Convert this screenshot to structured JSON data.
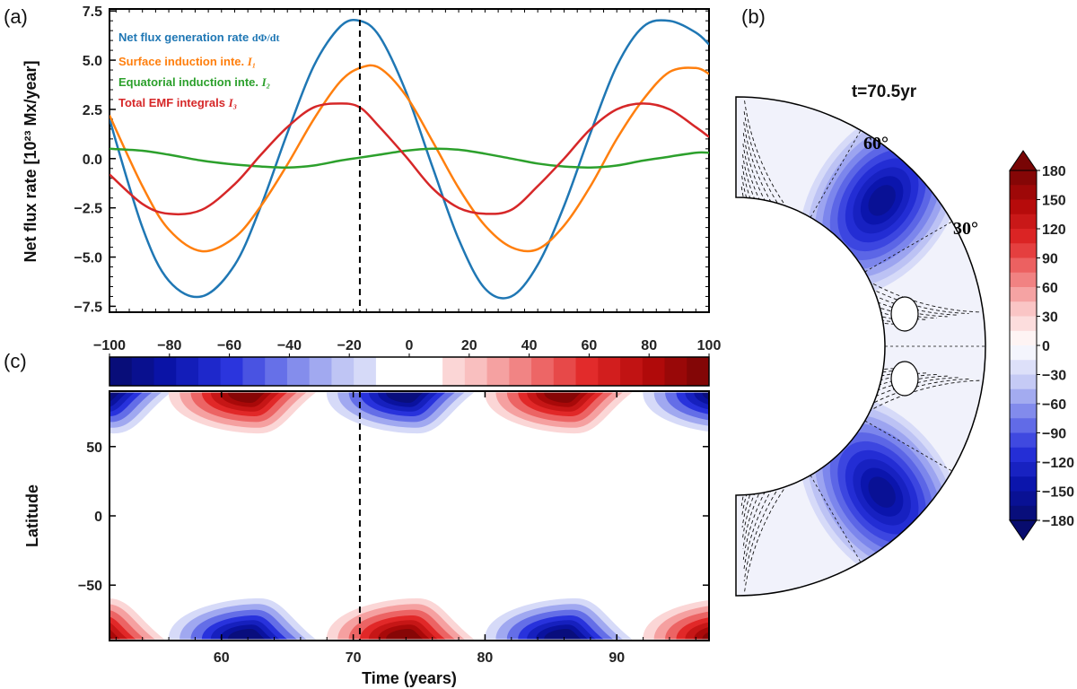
{
  "panel_labels": {
    "a": "(a)",
    "b": "(b)",
    "c": "(c)"
  },
  "colors": {
    "net": "#1f77b4",
    "surface": "#ff7f0e",
    "equatorial": "#2ca02c",
    "emf": "#d62728"
  },
  "chart_data": [
    {
      "id": "a",
      "type": "line",
      "title": "",
      "xlabel": "",
      "ylabel": "Net flux rate [10²³ Mx/year]",
      "xlim": [
        51.5,
        97
      ],
      "ylim": [
        -7.8,
        7.6
      ],
      "yticks": [
        -7.5,
        -5.0,
        -2.5,
        0.0,
        2.5,
        5.0,
        7.5
      ],
      "ytick_labels": [
        "−7.5",
        "−5.0",
        "−2.5",
        "0.0",
        "2.5",
        "5.0",
        "7.5"
      ],
      "vline_x": 70.5,
      "x": [
        51.5,
        54,
        56,
        58.5,
        61,
        63,
        65,
        67,
        69,
        70.5,
        72,
        74,
        76,
        78,
        80,
        82,
        84,
        86,
        88,
        90,
        92,
        94,
        96,
        97
      ],
      "series": [
        {
          "name": "Net flux generation rate",
          "name_suffix": "dΦ/dt",
          "color_key": "net",
          "values": [
            2.0,
            -3.5,
            -6.2,
            -7.0,
            -5.4,
            -2.4,
            1.3,
            4.7,
            6.7,
            7.0,
            6.2,
            3.4,
            -0.4,
            -4.1,
            -6.6,
            -7.0,
            -5.4,
            -2.4,
            1.3,
            4.7,
            6.7,
            7.0,
            6.4,
            5.8
          ]
        },
        {
          "name": "Surface induction inte.",
          "name_suffix": "I₁",
          "color_key": "surface",
          "values": [
            2.2,
            -1.4,
            -3.6,
            -4.7,
            -4.0,
            -2.4,
            -0.3,
            2.0,
            3.9,
            4.6,
            4.6,
            3.2,
            0.9,
            -1.5,
            -3.4,
            -4.5,
            -4.6,
            -3.4,
            -1.4,
            1.0,
            3.0,
            4.4,
            4.6,
            4.3
          ]
        },
        {
          "name": "Equatorial induction inte.",
          "name_suffix": "I₂",
          "color_key": "equatorial",
          "values": [
            0.5,
            0.4,
            0.2,
            -0.1,
            -0.3,
            -0.4,
            -0.45,
            -0.35,
            -0.1,
            0.05,
            0.2,
            0.4,
            0.5,
            0.45,
            0.25,
            0.0,
            -0.25,
            -0.4,
            -0.45,
            -0.35,
            -0.1,
            0.1,
            0.3,
            0.3
          ]
        },
        {
          "name": "Total EMF integrals",
          "name_suffix": "I₃",
          "color_key": "emf",
          "values": [
            -0.8,
            -2.3,
            -2.8,
            -2.6,
            -1.3,
            0.2,
            1.6,
            2.6,
            2.8,
            2.6,
            1.6,
            0.1,
            -1.5,
            -2.5,
            -2.8,
            -2.6,
            -1.4,
            0.0,
            1.5,
            2.5,
            2.8,
            2.5,
            1.6,
            1.1
          ]
        }
      ]
    },
    {
      "id": "c",
      "type": "heatmap",
      "title": "",
      "xlabel": "Time (years)",
      "ylabel": "Latitude",
      "xlim": [
        51.5,
        97
      ],
      "ylim": [
        -90,
        90
      ],
      "xticks": [
        60,
        70,
        80,
        90
      ],
      "xtick_labels": [
        "60",
        "70",
        "80",
        "90"
      ],
      "yticks": [
        -50,
        0,
        50
      ],
      "ytick_labels": [
        "−50",
        "0",
        "50"
      ],
      "vline_x": 70.5,
      "colorbar": {
        "range": [
          -100,
          100
        ],
        "tick_values": [
          -100,
          -80,
          -60,
          -40,
          -20,
          0,
          20,
          40,
          60,
          80,
          100
        ],
        "tick_labels": [
          "−100",
          "−80",
          "−60",
          "−40",
          "−20",
          "0",
          "20",
          "40",
          "60",
          "80",
          "100"
        ]
      },
      "blobs": [
        {
          "hemisphere": "north",
          "t_center": 51.0,
          "sign": -1
        },
        {
          "hemisphere": "north",
          "t_center": 62.0,
          "sign": 1
        },
        {
          "hemisphere": "north",
          "t_center": 74.0,
          "sign": -1
        },
        {
          "hemisphere": "north",
          "t_center": 86.0,
          "sign": 1
        },
        {
          "hemisphere": "north",
          "t_center": 98.0,
          "sign": -1
        },
        {
          "hemisphere": "south",
          "t_center": 50.5,
          "sign": 1
        },
        {
          "hemisphere": "south",
          "t_center": 62.0,
          "sign": -1
        },
        {
          "hemisphere": "south",
          "t_center": 74.0,
          "sign": 1
        },
        {
          "hemisphere": "south",
          "t_center": 86.0,
          "sign": -1
        },
        {
          "hemisphere": "south",
          "t_center": 98.0,
          "sign": 1
        }
      ]
    },
    {
      "id": "b",
      "type": "heatmap",
      "title": "t=70.5yr",
      "angle_labels": [
        "60°",
        "30°"
      ],
      "colorbar": {
        "range": [
          -180,
          180
        ],
        "tick_values": [
          180,
          150,
          120,
          90,
          60,
          30,
          0,
          -30,
          -60,
          -90,
          -120,
          -150,
          -180
        ],
        "tick_labels": [
          "180",
          "150",
          "120",
          "90",
          "60",
          "30",
          "0",
          "−30",
          "−60",
          "−90",
          "−120",
          "−150",
          "−180"
        ]
      }
    }
  ]
}
